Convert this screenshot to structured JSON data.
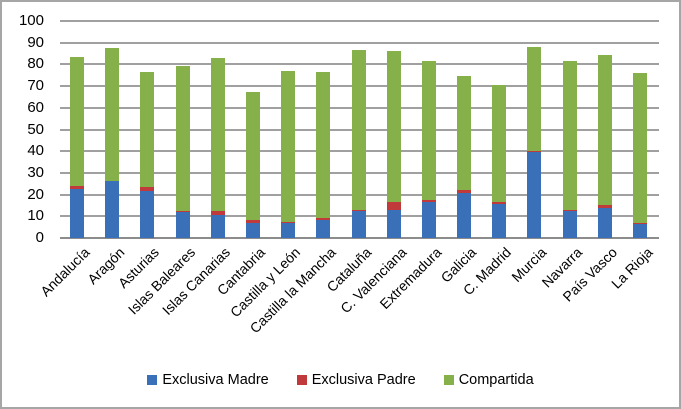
{
  "chart_data": {
    "type": "bar",
    "stacked": true,
    "title": "",
    "xlabel": "",
    "ylabel": "",
    "ylim": [
      0,
      100
    ],
    "yticks": [
      0,
      10,
      20,
      30,
      40,
      50,
      60,
      70,
      80,
      90,
      100
    ],
    "grid": true,
    "legend_position": "bottom",
    "categories": [
      "Andalucía",
      "Aragón",
      "Asturias",
      "Islas Baleares",
      "Islas Canarias",
      "Cantabria",
      "Castilla y León",
      "Castilla la Mancha",
      "Cataluña",
      "C. Valenciana",
      "Extremadura",
      "Galicia",
      "C. Madrid",
      "Murcia",
      "Navarra",
      "País Vasco",
      "La Rioja"
    ],
    "series": [
      {
        "name": "Exclusiva Madre",
        "color": "#3a70b8",
        "values": [
          22.8,
          26.1,
          21.7,
          12.0,
          10.6,
          7.0,
          7.2,
          8.2,
          12.4,
          13.0,
          16.8,
          20.9,
          15.8,
          39.6,
          12.6,
          13.7,
          6.5
        ]
      },
      {
        "name": "Exclusiva Padre",
        "color": "#c0393b",
        "values": [
          1.3,
          0.0,
          1.6,
          0.6,
          1.8,
          1.5,
          0.4,
          0.8,
          0.5,
          3.5,
          0.5,
          1.1,
          0.8,
          0.6,
          0.5,
          1.5,
          0.4
        ]
      },
      {
        "name": "Compartida",
        "color": "#86b04a",
        "values": [
          59.4,
          61.4,
          53.2,
          66.8,
          70.6,
          59.0,
          69.5,
          67.5,
          73.7,
          69.5,
          64.1,
          52.8,
          53.9,
          47.8,
          68.3,
          69.0,
          69.3
        ]
      }
    ]
  },
  "legend": {
    "items": [
      {
        "label": "Exclusiva Madre",
        "color": "#3a70b8"
      },
      {
        "label": "Exclusiva Padre",
        "color": "#c0393b"
      },
      {
        "label": "Compartida",
        "color": "#86b04a"
      }
    ]
  }
}
